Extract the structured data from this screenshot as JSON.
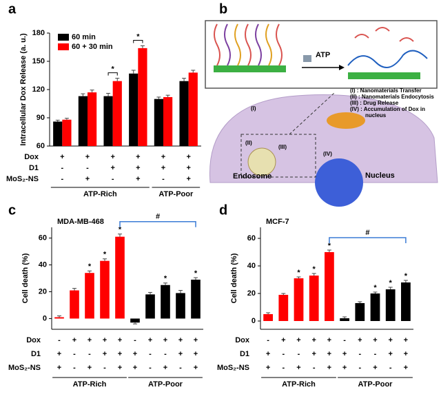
{
  "chart_data": [
    {
      "label": "a",
      "type": "bar",
      "ylabel": "Intracellular Dox Release (a. u.)",
      "ylim": [
        60,
        180
      ],
      "yticks": [
        60,
        90,
        120,
        150,
        180
      ],
      "legend": "upper left",
      "series": [
        {
          "name": "60 min",
          "color": "#000000",
          "values": [
            86,
            113,
            113,
            137,
            110,
            129
          ],
          "errors": [
            1.5,
            2.5,
            3,
            3.5,
            2,
            3
          ]
        },
        {
          "name": "60 + 30 min",
          "color": "#ff0000",
          "values": [
            88,
            117,
            129,
            164,
            112,
            138
          ],
          "errors": [
            1.5,
            2.5,
            3,
            2.5,
            2,
            2.5
          ]
        }
      ],
      "significance": [
        null,
        null,
        "*",
        "*",
        null,
        null
      ],
      "annotation_color": "#000000",
      "conditions": [
        {
          "name": "Dox",
          "marks": [
            "+",
            "+",
            "+",
            "+",
            "+",
            "+"
          ]
        },
        {
          "name": "D1",
          "marks": [
            "-",
            "-",
            "+",
            "+",
            "+",
            "+"
          ]
        },
        {
          "name": "MoS₂-NS",
          "marks": [
            "-",
            "+",
            "-",
            "+",
            "-",
            "+"
          ]
        }
      ],
      "groups": [
        {
          "label": "ATP-Rich",
          "from": 0,
          "to": 3
        },
        {
          "label": "ATP-Poor",
          "from": 4,
          "to": 5
        }
      ]
    },
    {
      "label": "c",
      "type": "bar",
      "title": "MDA-MB-468",
      "ylabel": "Cell death (%)",
      "ylim": [
        -8,
        68
      ],
      "yticks": [
        0,
        20,
        40,
        60
      ],
      "values": [
        1,
        21,
        34,
        43,
        61,
        -3,
        18,
        25,
        19,
        29
      ],
      "errors": [
        1,
        1.5,
        1.5,
        1.5,
        2,
        1,
        1.5,
        1.5,
        2,
        1.5
      ],
      "colors": [
        "#ff0000",
        "#ff0000",
        "#ff0000",
        "#ff0000",
        "#ff0000",
        "#000000",
        "#000000",
        "#000000",
        "#000000",
        "#000000"
      ],
      "significance": [
        null,
        null,
        "*",
        "*",
        "*",
        null,
        null,
        "*",
        null,
        "*"
      ],
      "bracket": {
        "label": "#",
        "from": 4,
        "to": 9,
        "color": "#3a7bd5"
      },
      "conditions": [
        {
          "name": "Dox",
          "marks": [
            "-",
            "+",
            "+",
            "+",
            "+",
            "-",
            "+",
            "+",
            "+",
            "+"
          ]
        },
        {
          "name": "D1",
          "marks": [
            "+",
            "-",
            "-",
            "+",
            "+",
            "+",
            "-",
            "-",
            "+",
            "+"
          ]
        },
        {
          "name": "MoS₂-NS",
          "marks": [
            "+",
            "-",
            "+",
            "-",
            "+",
            "+",
            "-",
            "+",
            "-",
            "+"
          ]
        }
      ],
      "groups": [
        {
          "label": "ATP-Rich",
          "from": 0,
          "to": 4
        },
        {
          "label": "ATP-Poor",
          "from": 5,
          "to": 9
        }
      ]
    },
    {
      "label": "d",
      "type": "bar",
      "title": "MCF-7",
      "ylabel": "Cell death (%)",
      "ylim": [
        -6,
        68
      ],
      "yticks": [
        0,
        20,
        40,
        60
      ],
      "values": [
        5,
        19,
        31,
        33,
        50,
        2,
        13,
        20,
        23,
        28
      ],
      "errors": [
        1,
        1,
        1,
        1.5,
        1.5,
        1,
        1,
        1,
        1.5,
        1.5
      ],
      "colors": [
        "#ff0000",
        "#ff0000",
        "#ff0000",
        "#ff0000",
        "#ff0000",
        "#000000",
        "#000000",
        "#000000",
        "#000000",
        "#000000"
      ],
      "significance": [
        null,
        null,
        "*",
        "*",
        "*",
        null,
        null,
        "*",
        "*",
        "*"
      ],
      "bracket": {
        "label": "#",
        "from": 4,
        "to": 9,
        "color": "#3a7bd5"
      },
      "conditions": [
        {
          "name": "Dox",
          "marks": [
            "-",
            "+",
            "+",
            "+",
            "+",
            "-",
            "+",
            "+",
            "+",
            "+"
          ]
        },
        {
          "name": "D1",
          "marks": [
            "+",
            "-",
            "-",
            "+",
            "+",
            "+",
            "-",
            "-",
            "+",
            "+"
          ]
        },
        {
          "name": "MoS₂-NS",
          "marks": [
            "+",
            "-",
            "+",
            "-",
            "+",
            "+",
            "-",
            "+",
            "-",
            "+"
          ]
        }
      ],
      "groups": [
        {
          "label": "ATP-Rich",
          "from": 0,
          "to": 4
        },
        {
          "label": "ATP-Poor",
          "from": 5,
          "to": 9
        }
      ]
    }
  ],
  "diagram": {
    "label": "b",
    "atp": "ATP",
    "steps": [
      "(I) : Nanomaterials Transfer",
      "(II) : Nanomaterials Endocytosis",
      "(III) : Drug Release",
      "(IV) : Accumulation of Dox in",
      "nucleus"
    ],
    "markers": [
      "(I)",
      "(II)",
      "(III)",
      "(IV)"
    ],
    "endosome": "Endosome",
    "nucleus": "Nucleus"
  }
}
